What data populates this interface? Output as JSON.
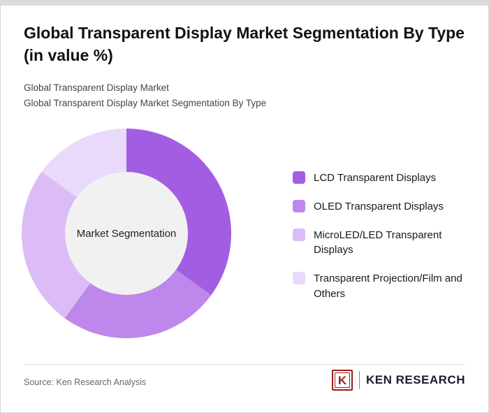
{
  "header": {
    "title": "Global Transparent Display Market Segmentation By Type (in value %)",
    "subtitle1": "Global Transparent Display Market",
    "subtitle2": "Global Transparent Display Market Segmentation By Type"
  },
  "chart_data": {
    "type": "pie",
    "variant": "donut",
    "title": "Global Transparent Display Market Segmentation By Type (in value %)",
    "center_label": "Market Segmentation",
    "legend_position": "right",
    "data_labels_shown": false,
    "segments": [
      {
        "label": "LCD Transparent Displays",
        "value": 35,
        "color": "#a35de2"
      },
      {
        "label": "OLED Transparent Displays",
        "value": 25,
        "color": "#bd87ec"
      },
      {
        "label": "MicroLED/LED Transparent Displays",
        "value": 25,
        "color": "#dcbcf6"
      },
      {
        "label": "Transparent Projection/Film and Others",
        "value": 15,
        "color": "#e9d9fb"
      }
    ]
  },
  "footer": {
    "source": "Source: Ken Research Analysis",
    "brand_initial": "K",
    "brand_name": "KEN RESEARCH"
  }
}
